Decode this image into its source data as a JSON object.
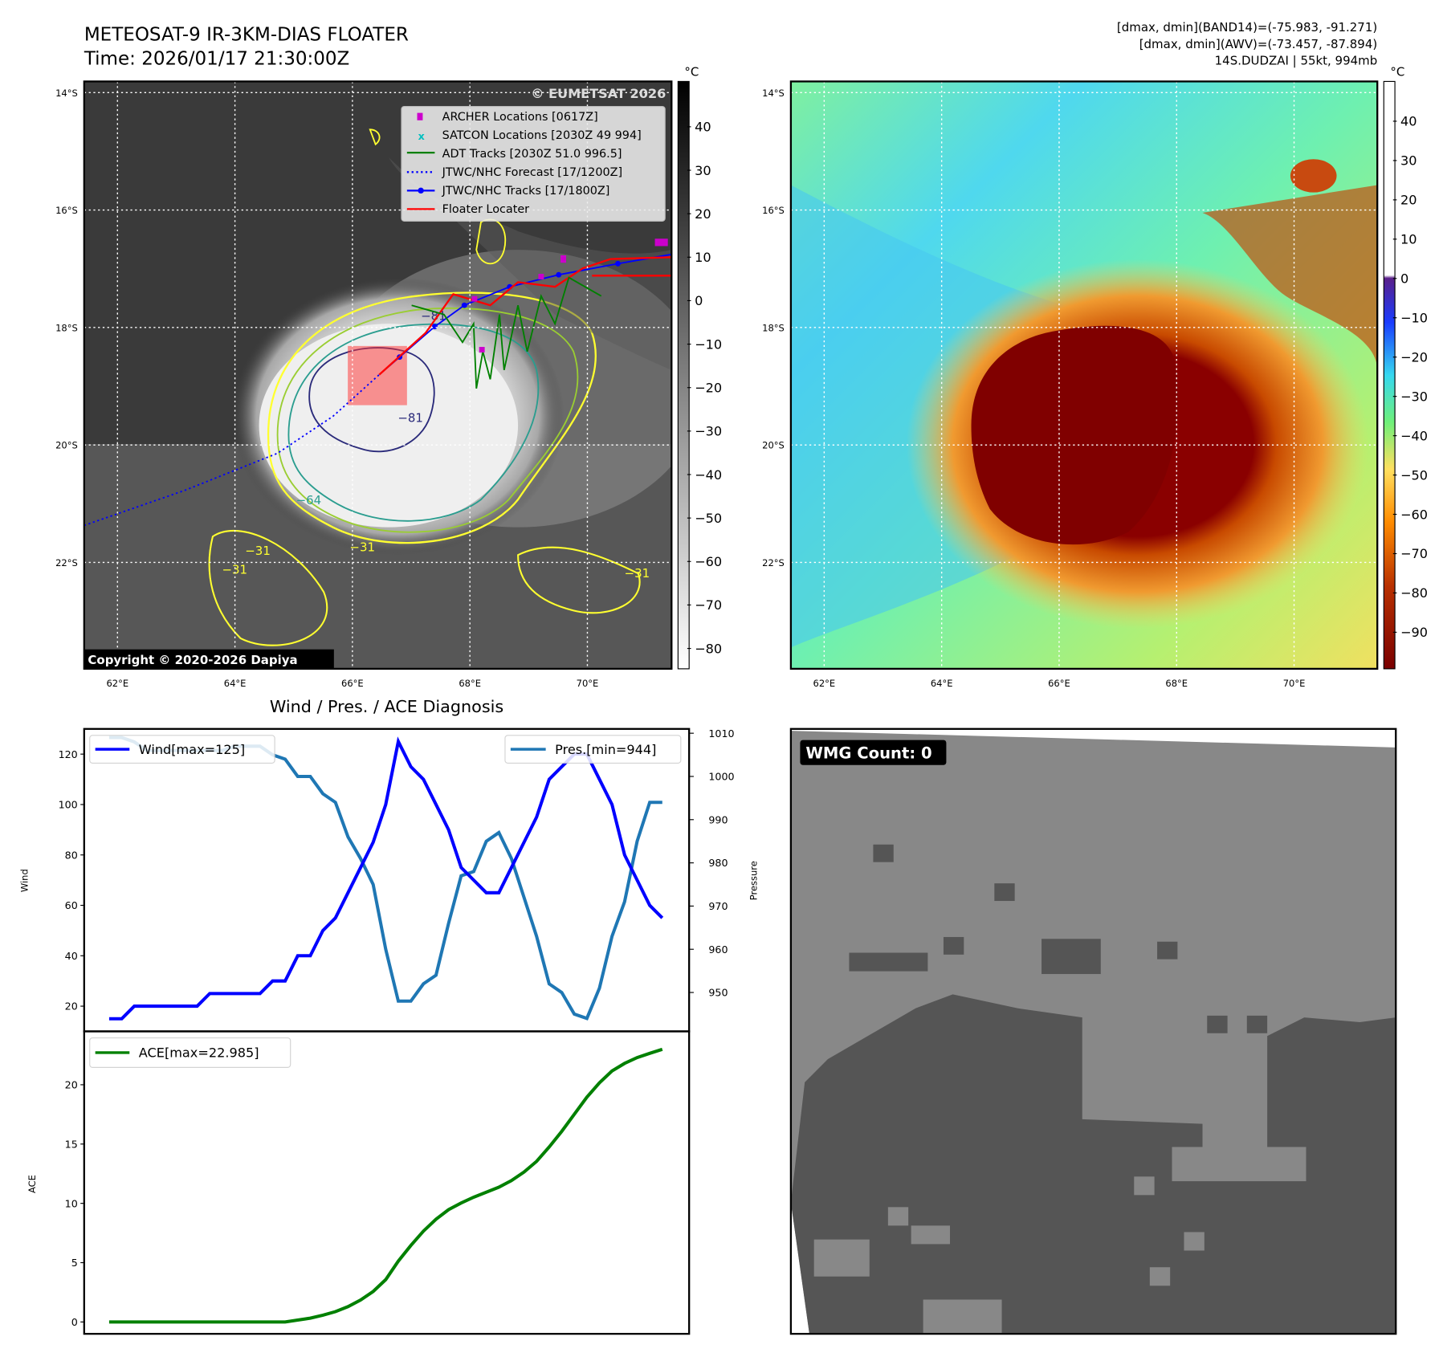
{
  "map_ir": {
    "title_line1": "METEOSAT-9 IR-3KM-DIAS FLOATER",
    "title_line2": "Time: 2026/01/17 21:30:00Z",
    "watermark": "© EUMETSAT 2026",
    "copyright": "Copyright © 2020-2026 Dapiya",
    "colorbar_unit": "°C",
    "colorbar_ticks": [
      "40",
      "30",
      "20",
      "10",
      "0",
      "−10",
      "−20",
      "−30",
      "−40",
      "−50",
      "−60",
      "−70",
      "−80"
    ],
    "lat_ticks": [
      "14°S",
      "16°S",
      "18°S",
      "20°S",
      "22°S"
    ],
    "lon_ticks": [
      "62°E",
      "64°E",
      "66°E",
      "68°E",
      "70°E"
    ],
    "contour_labels": [
      "−81",
      "−81",
      "−64",
      "−31",
      "−31",
      "−31",
      "−31"
    ],
    "legend": [
      "ARCHER Locations [0617Z]",
      "SATCON Locations [2030Z 49 994]",
      "ADT Tracks [2030Z 51.0 996.5]",
      "JTWC/NHC Forecast [17/1200Z]",
      "JTWC/NHC Tracks [17/1800Z]",
      "Floater Locater"
    ]
  },
  "map_awv": {
    "info_line1": "[dmax, dmin](BAND14)=(-75.983, -91.271)",
    "info_line2": "[dmax, dmin](AWV)=(-73.457, -87.894)",
    "info_line3": "14S.DUDZAI | 55kt, 994mb",
    "colorbar_unit": "°C",
    "colorbar_ticks": [
      "40",
      "30",
      "20",
      "10",
      "0",
      "−10",
      "−20",
      "−30",
      "−40",
      "−50",
      "−60",
      "−70",
      "−80",
      "−90"
    ],
    "lat_ticks": [
      "14°S",
      "16°S",
      "18°S",
      "20°S",
      "22°S"
    ],
    "lon_ticks": [
      "62°E",
      "64°E",
      "66°E",
      "68°E",
      "70°E"
    ]
  },
  "wmg": {
    "label": "WMG Count: 0"
  },
  "colors": {
    "wind": "#0000ff",
    "pres": "#1f77b4",
    "ace": "#008000"
  },
  "chart_data": [
    {
      "type": "line",
      "title": "Wind / Pres. / ACE Diagnosis",
      "ylabel": "Wind",
      "y2label": "Pressure",
      "ylim": [
        10,
        130
      ],
      "y2lim": [
        941,
        1011
      ],
      "yticks": [
        "20",
        "40",
        "60",
        "80",
        "100",
        "120"
      ],
      "y2ticks": [
        "950",
        "960",
        "970",
        "980",
        "990",
        "1000",
        "1010"
      ],
      "series": [
        {
          "name": "Wind[max=125]",
          "axis": "left",
          "values": [
            15,
            15,
            20,
            20,
            20,
            20,
            20,
            20,
            25,
            25,
            25,
            25,
            25,
            30,
            30,
            40,
            40,
            50,
            55,
            65,
            75,
            85,
            100,
            125,
            115,
            110,
            100,
            90,
            75,
            70,
            65,
            65,
            75,
            85,
            95,
            110,
            115,
            120,
            120,
            110,
            100,
            80,
            70,
            60,
            55
          ]
        },
        {
          "name": "Pres.[min=944]",
          "axis": "right",
          "values": [
            1009,
            1009,
            1008,
            1006,
            1006,
            1006,
            1006,
            1006,
            1006,
            1006,
            1007,
            1007,
            1007,
            1005,
            1004,
            1000,
            1000,
            996,
            994,
            986,
            981,
            975,
            960,
            948,
            948,
            952,
            954,
            966,
            977,
            978,
            985,
            987,
            981,
            972,
            963,
            952,
            950,
            945,
            944,
            951,
            963,
            971,
            985,
            994,
            994
          ]
        }
      ]
    },
    {
      "type": "line",
      "ylabel": "ACE",
      "ylim": [
        -1,
        24.5
      ],
      "yticks": [
        "0",
        "5",
        "10",
        "15",
        "20"
      ],
      "series": [
        {
          "name": "ACE[max=22.985]",
          "values": [
            0,
            0,
            0,
            0,
            0,
            0,
            0,
            0,
            0,
            0,
            0,
            0,
            0,
            0,
            0,
            0.16,
            0.32,
            0.57,
            0.87,
            1.29,
            1.85,
            2.57,
            3.57,
            5.13,
            6.45,
            7.66,
            8.66,
            9.47,
            10.03,
            10.52,
            10.94,
            11.36,
            11.92,
            12.64,
            13.54,
            14.75,
            16.07,
            17.51,
            18.95,
            20.16,
            21.16,
            21.8,
            22.29,
            22.65,
            22.985
          ]
        }
      ]
    }
  ]
}
